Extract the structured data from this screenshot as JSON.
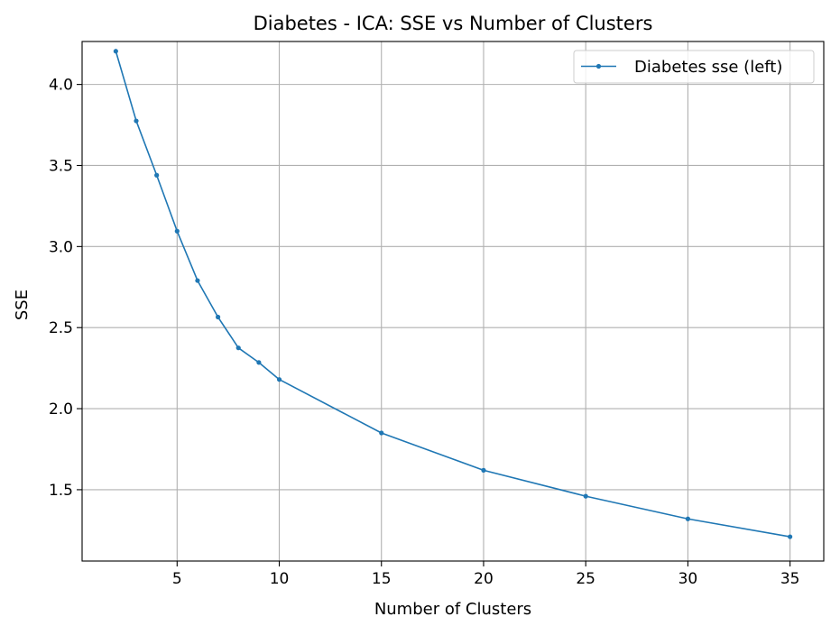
{
  "chart_data": {
    "type": "line",
    "title": "Diabetes - ICA: SSE vs Number of Clusters",
    "xlabel": "Number of Clusters",
    "ylabel": "SSE",
    "xlim": [
      0.35,
      36.65
    ],
    "ylim": [
      1.06,
      4.265
    ],
    "xticks": [
      5,
      10,
      15,
      20,
      25,
      30,
      35
    ],
    "yticks": [
      1.5,
      2.0,
      2.5,
      3.0,
      3.5,
      4.0
    ],
    "ytick_labels": [
      "1.5",
      "2.0",
      "2.5",
      "3.0",
      "3.5",
      "4.0"
    ],
    "grid": true,
    "legend": {
      "location": "top-right"
    },
    "series": [
      {
        "name": "Diabetes sse (left)",
        "color": "#1f77b4",
        "marker": "point",
        "x": [
          2,
          3,
          4,
          5,
          6,
          7,
          8,
          9,
          10,
          15,
          20,
          25,
          30,
          35
        ],
        "y": [
          4.205,
          3.775,
          3.44,
          3.095,
          2.79,
          2.565,
          2.375,
          2.285,
          2.18,
          1.85,
          1.62,
          1.46,
          1.32,
          1.21
        ]
      }
    ]
  }
}
